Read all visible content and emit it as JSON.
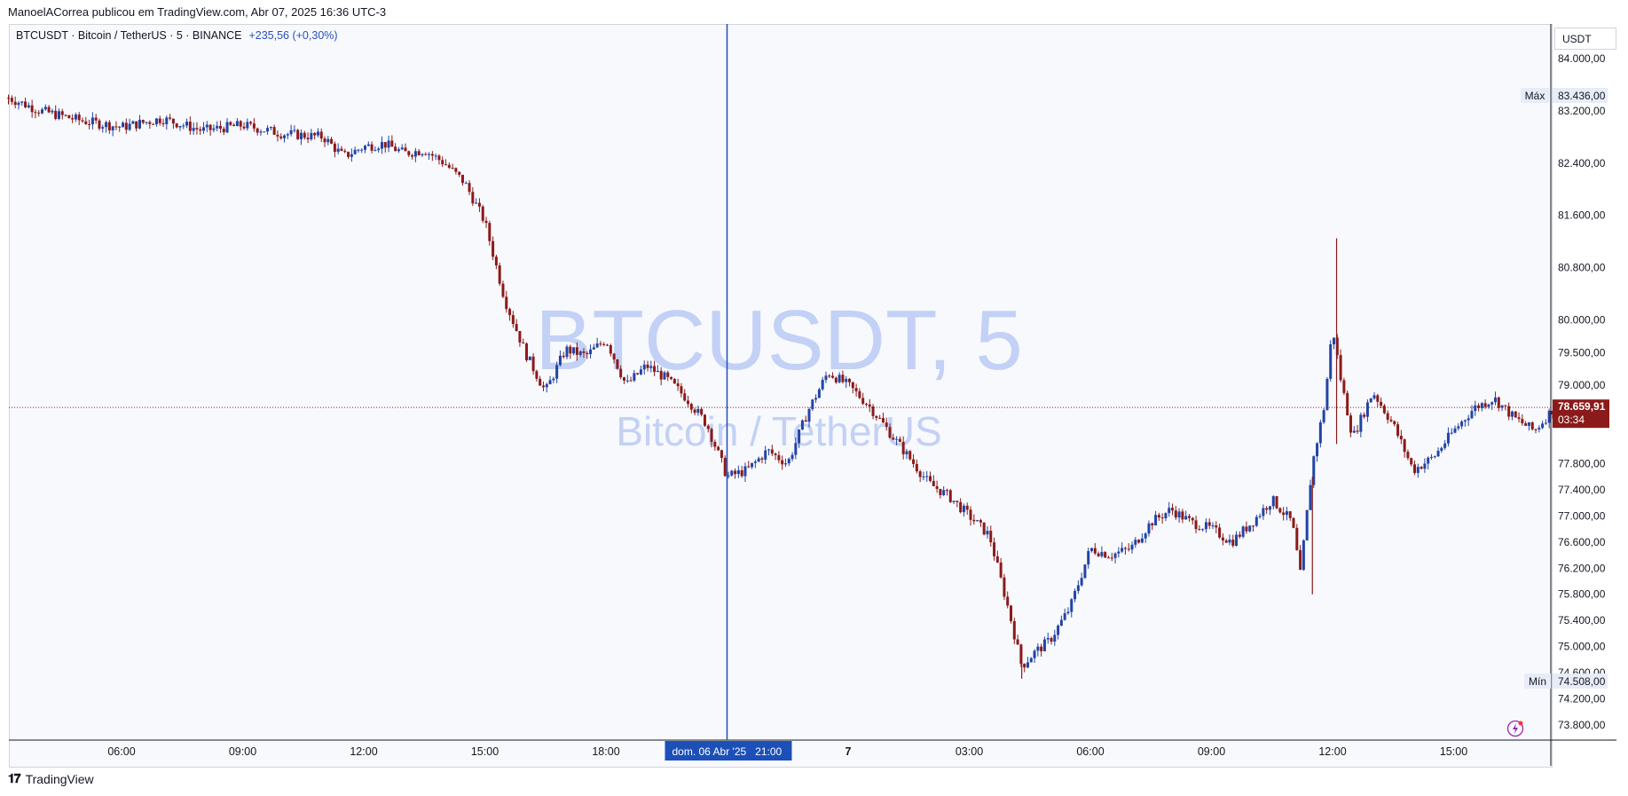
{
  "header": {
    "publisher_line": "ManoelACorrea publicou em TradingView.com, Abr 07, 2025 16:36 UTC-3",
    "symbol_line": "BTCUSDT · Bitcoin / TetherUS · 5 · BINANCE",
    "change": "+235,56 (+0,30%)"
  },
  "axis": {
    "currency_unit": "USDT"
  },
  "watermark": {
    "line1": "BTCUSDT, 5",
    "line2": "Bitcoin / TetherUS"
  },
  "markers": {
    "max_label": "Máx",
    "max_value": "83.436,00",
    "min_label": "Mín",
    "min_value": "74.508,00",
    "last_price": "78.659,91",
    "countdown": "03:34",
    "crosshair_time": "dom. 06 Abr '25   21:00"
  },
  "footer": {
    "brand": "TradingView"
  },
  "colors": {
    "up": "#2244a6",
    "down": "#8b1a1a",
    "crosshair": "#1c4fb8",
    "price_tag": "#8b1a1a"
  },
  "chart_data": {
    "type": "candlestick",
    "title": "",
    "xlabel": "",
    "ylabel": "",
    "ylim": [
      73650,
      84350
    ],
    "y_ticks": [
      {
        "value": 84000,
        "label": "84.000,00"
      },
      {
        "value": 83200,
        "label": "83.200,00"
      },
      {
        "value": 82400,
        "label": "82.400,00"
      },
      {
        "value": 81600,
        "label": "81.600,00"
      },
      {
        "value": 80800,
        "label": "80.800,00"
      },
      {
        "value": 80000,
        "label": "80.000,00"
      },
      {
        "value": 79500,
        "label": "79.500,00"
      },
      {
        "value": 79000,
        "label": "79.000,00"
      },
      {
        "value": 77800,
        "label": "77.800,00"
      },
      {
        "value": 77400,
        "label": "77.400,00"
      },
      {
        "value": 77000,
        "label": "77.000,00"
      },
      {
        "value": 76600,
        "label": "76.600,00"
      },
      {
        "value": 76200,
        "label": "76.200,00"
      },
      {
        "value": 75800,
        "label": "75.800,00"
      },
      {
        "value": 75400,
        "label": "75.400,00"
      },
      {
        "value": 75000,
        "label": "75.000,00"
      },
      {
        "value": 74600,
        "label": "74.600,00"
      },
      {
        "value": 74200,
        "label": "74.200,00"
      },
      {
        "value": 73800,
        "label": "73.800,00"
      }
    ],
    "x_ticks": [
      {
        "t": 6,
        "label": "06:00"
      },
      {
        "t": 9,
        "label": "09:00"
      },
      {
        "t": 12,
        "label": "12:00"
      },
      {
        "t": 15,
        "label": "15:00"
      },
      {
        "t": 18,
        "label": "18:00"
      },
      {
        "t": 24,
        "label": "7"
      },
      {
        "t": 27,
        "label": "03:00"
      },
      {
        "t": 30,
        "label": "06:00"
      },
      {
        "t": 33,
        "label": "09:00"
      },
      {
        "t": 36,
        "label": "12:00"
      },
      {
        "t": 39,
        "label": "15:00"
      }
    ],
    "x_range_hours": [
      3.2,
      41.6
    ],
    "crosshair_hour": 21,
    "max_price": 83436,
    "min_price": 74508,
    "last_price": 78659.91,
    "close_path": [
      [
        3.2,
        83400
      ],
      [
        4.0,
        83200
      ],
      [
        5.0,
        83050
      ],
      [
        6.0,
        82950
      ],
      [
        7.0,
        83080
      ],
      [
        8.0,
        82900
      ],
      [
        9.0,
        82980
      ],
      [
        10.0,
        82850
      ],
      [
        11.0,
        82800
      ],
      [
        11.5,
        82500
      ],
      [
        12.0,
        82650
      ],
      [
        12.5,
        82700
      ],
      [
        13.0,
        82550
      ],
      [
        13.5,
        82600
      ],
      [
        14.0,
        82400
      ],
      [
        14.5,
        82100
      ],
      [
        15.0,
        81500
      ],
      [
        15.5,
        80300
      ],
      [
        16.0,
        79500
      ],
      [
        16.5,
        78900
      ],
      [
        17.0,
        79550
      ],
      [
        17.5,
        79450
      ],
      [
        18.0,
        79700
      ],
      [
        18.5,
        79000
      ],
      [
        19.0,
        79300
      ],
      [
        19.5,
        79100
      ],
      [
        20.0,
        78800
      ],
      [
        20.5,
        78400
      ],
      [
        21.0,
        77600
      ],
      [
        21.5,
        77700
      ],
      [
        22.0,
        78000
      ],
      [
        22.5,
        77800
      ],
      [
        23.0,
        78600
      ],
      [
        23.5,
        79200
      ],
      [
        24.0,
        79000
      ],
      [
        24.5,
        78700
      ],
      [
        25.0,
        78300
      ],
      [
        25.5,
        77900
      ],
      [
        26.0,
        77500
      ],
      [
        26.5,
        77300
      ],
      [
        27.0,
        77000
      ],
      [
        27.5,
        76700
      ],
      [
        28.0,
        75500
      ],
      [
        28.3,
        74700
      ],
      [
        28.6,
        74900
      ],
      [
        29.0,
        75100
      ],
      [
        29.5,
        75600
      ],
      [
        30.0,
        76500
      ],
      [
        30.5,
        76400
      ],
      [
        31.0,
        76500
      ],
      [
        31.5,
        76900
      ],
      [
        32.0,
        77100
      ],
      [
        32.5,
        76900
      ],
      [
        33.0,
        76800
      ],
      [
        33.5,
        76600
      ],
      [
        34.0,
        76900
      ],
      [
        34.5,
        77250
      ],
      [
        35.0,
        76900
      ],
      [
        35.2,
        76100
      ],
      [
        35.5,
        77800
      ],
      [
        35.8,
        78700
      ],
      [
        36.0,
        79900
      ],
      [
        36.2,
        79100
      ],
      [
        36.5,
        78200
      ],
      [
        37.0,
        78900
      ],
      [
        37.5,
        78400
      ],
      [
        38.0,
        77700
      ],
      [
        38.5,
        77900
      ],
      [
        39.0,
        78300
      ],
      [
        39.5,
        78650
      ],
      [
        40.0,
        78800
      ],
      [
        40.5,
        78500
      ],
      [
        41.0,
        78300
      ],
      [
        41.5,
        78660
      ]
    ],
    "spikes": [
      {
        "t": 35.5,
        "low": 75800,
        "high": 77600
      },
      {
        "t": 36.1,
        "low": 78100,
        "high": 81250
      },
      {
        "t": 28.3,
        "low": 74508,
        "high": 75000
      },
      {
        "t": 3.2,
        "low": 83300,
        "high": 83436
      }
    ]
  }
}
